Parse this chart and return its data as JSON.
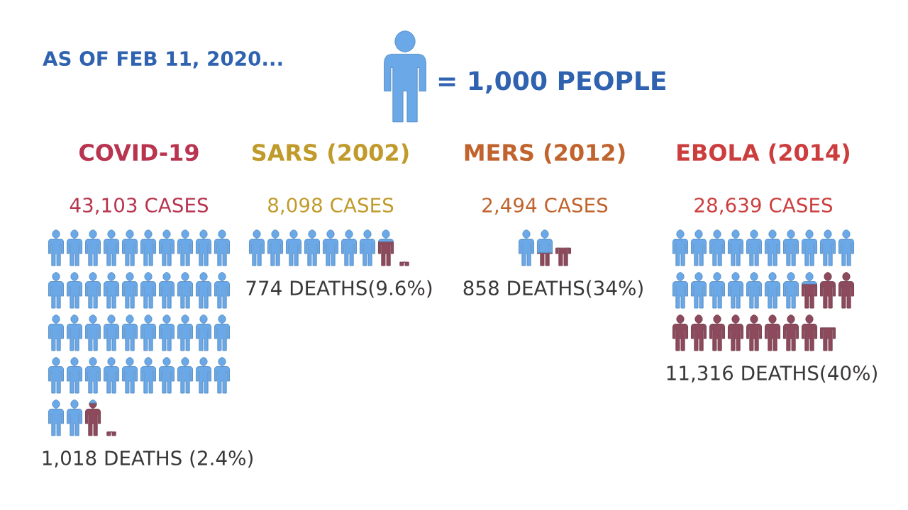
{
  "chart_data": [
    {
      "type": "other",
      "title": "AS OF FEB 11, 2020...",
      "color": "#6aa8e8",
      "values": [
        1000
      ],
      "value_labels": [
        "= 1,000 PEOPLE"
      ]
    },
    {
      "type": "other",
      "categories": [
        "COVID-19",
        "SARS (2002)",
        "MERS (2012)",
        "EBOLA (2014)"
      ],
      "colors": [
        "#b8344f",
        "#c09a2a",
        "#c0632c",
        "#cc3e3e"
      ],
      "series": [
        {
          "color": "#6aa8e8",
          "values": [
            43103,
            8098,
            2494,
            28639
          ],
          "value_labels": [
            "43,103 CASES",
            "8,098 CASES",
            "2,494 CASES",
            "28,639 CASES"
          ]
        },
        {
          "color": "#8c4a5c",
          "values": [
            1018,
            774,
            858,
            11316
          ],
          "value_labels": [
            "1,018 DEATHS (2.4%)",
            "774 DEATHS(9.6%)",
            "858 DEATHS(34%)",
            "11,316 DEATHS(40%)"
          ]
        }
      ]
    }
  ]
}
